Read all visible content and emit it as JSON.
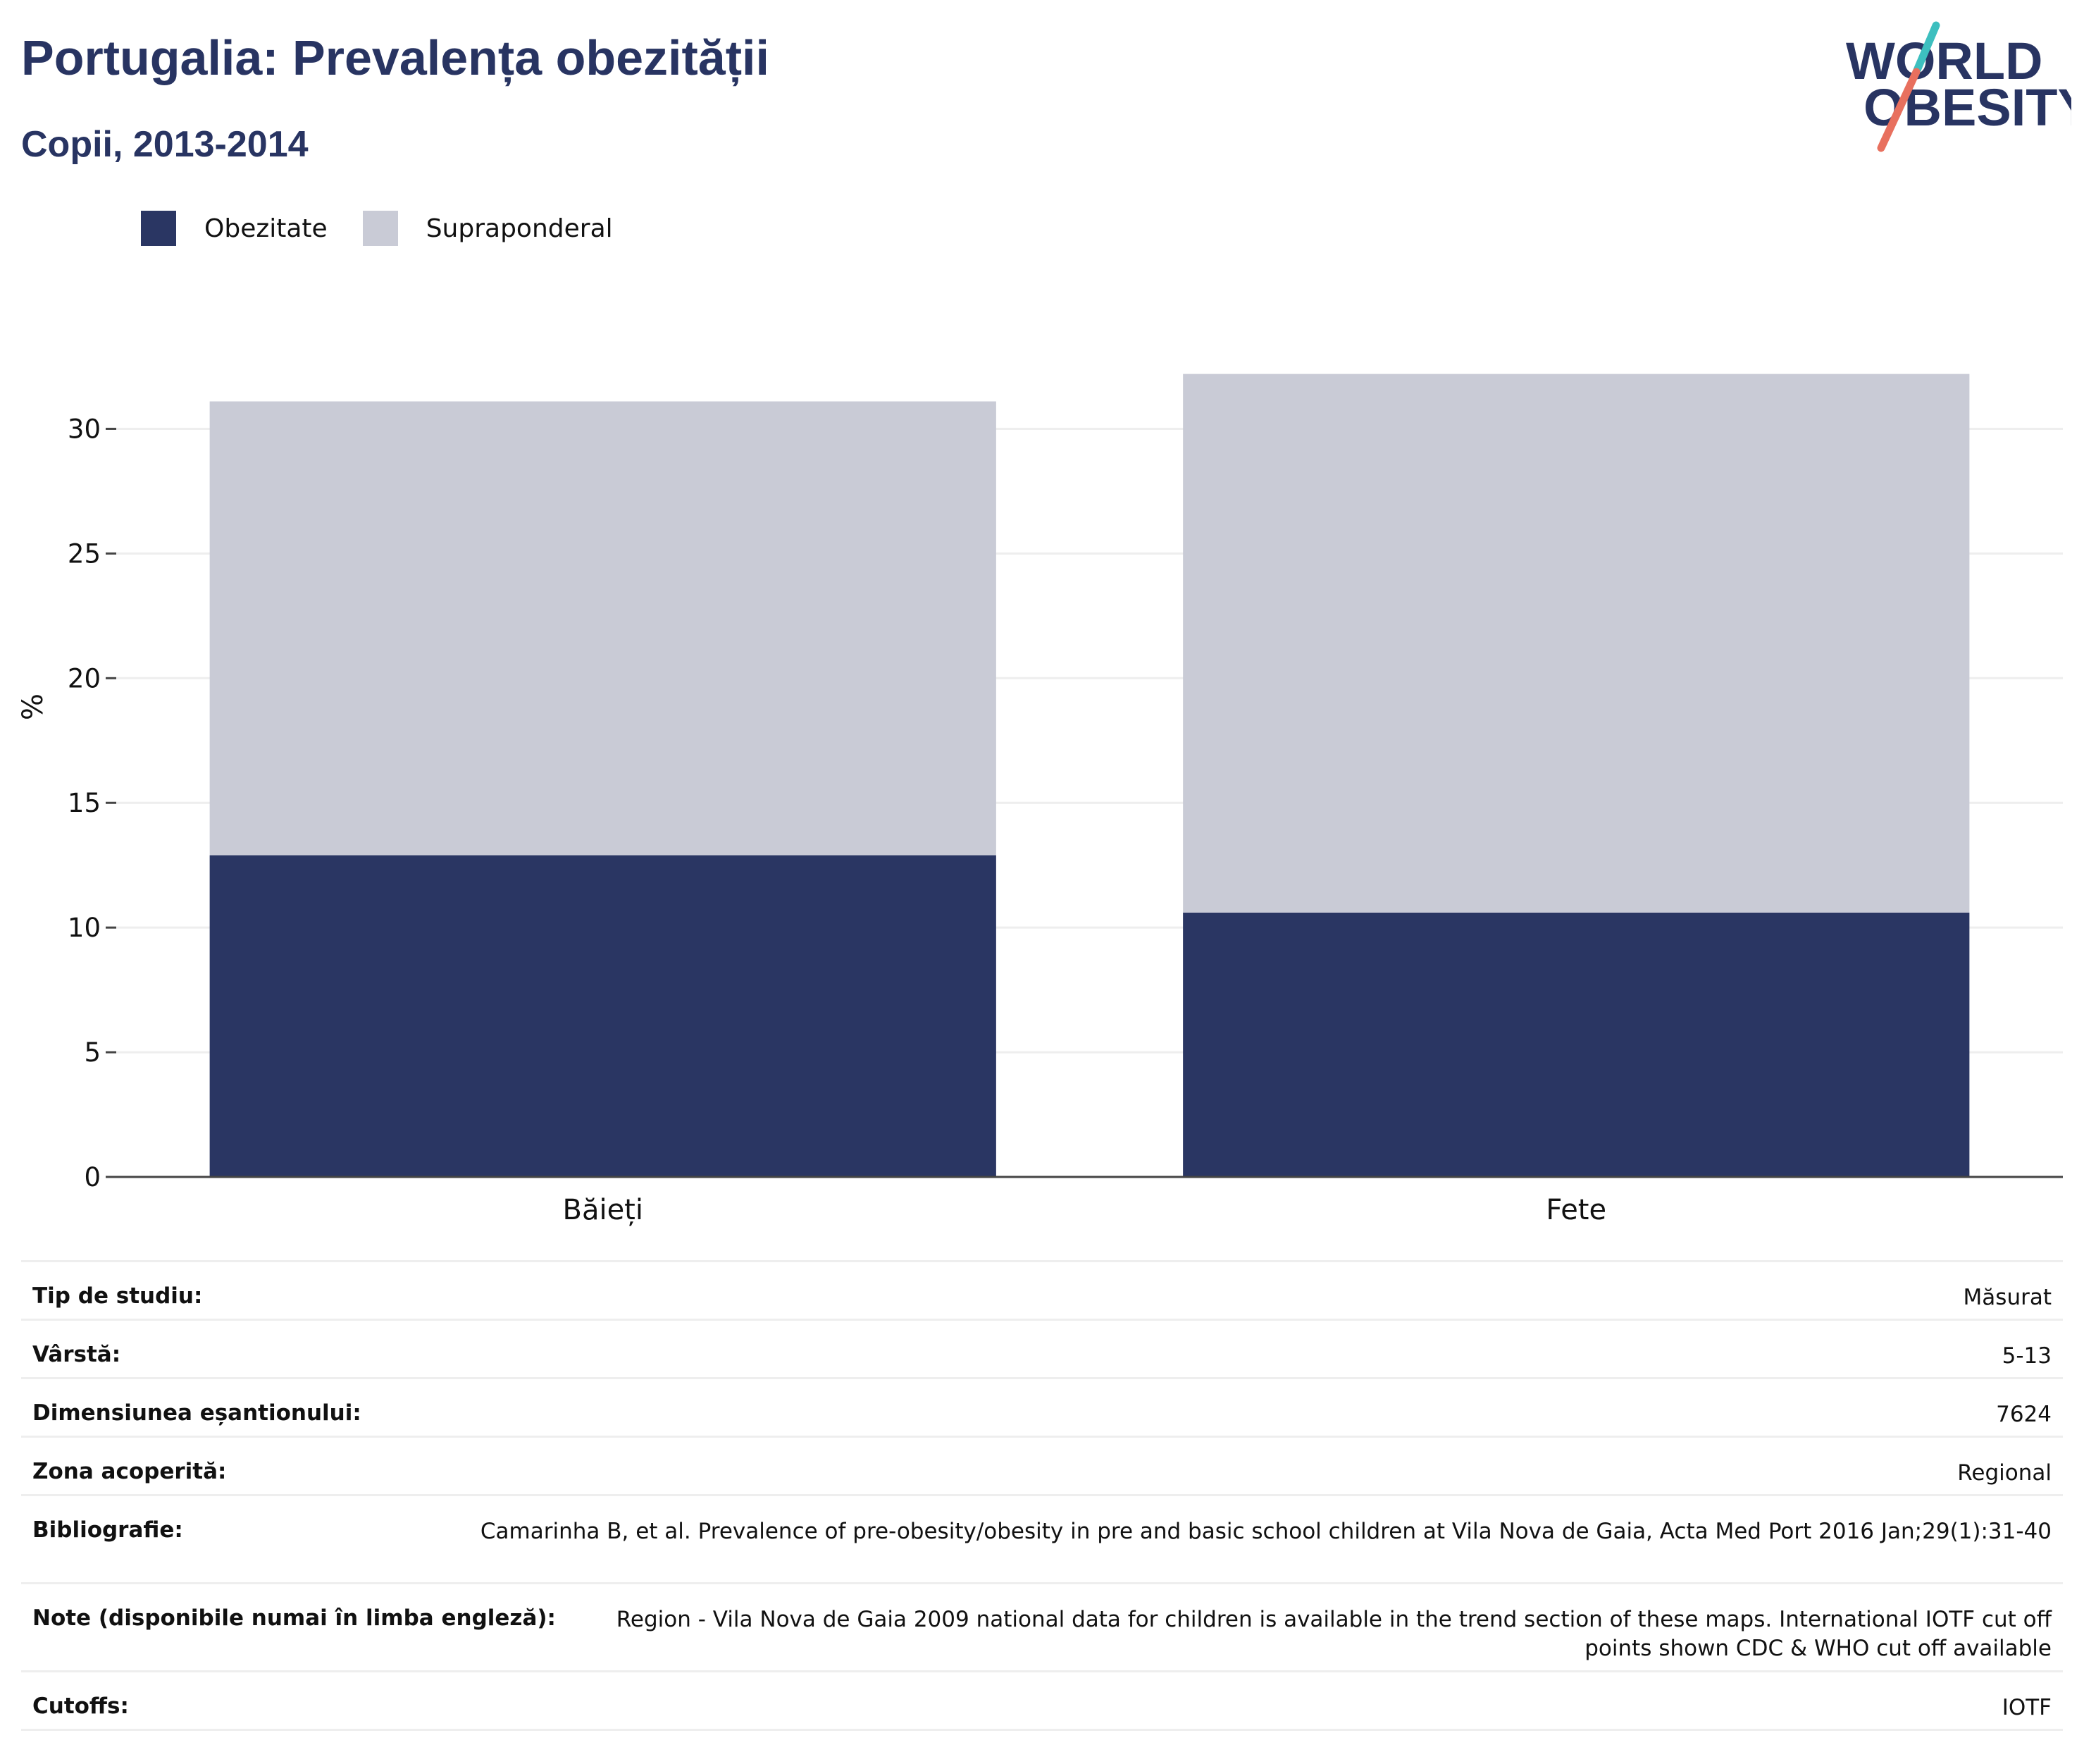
{
  "header": {
    "title": "Portugalia: Prevalența obezității",
    "subtitle": "Copii, 2013-2014"
  },
  "logo": {
    "line1": "WORLD",
    "line2": "OBESITY"
  },
  "colors": {
    "obesity": "#2a3663",
    "overweight": "#c9cbd6",
    "title": "#283462",
    "logo_teal": "#3dbfbf",
    "logo_coral": "#e8705e"
  },
  "legend": [
    {
      "label": "Obezitate",
      "color": "#2a3663"
    },
    {
      "label": "Supraponderal",
      "color": "#c9cbd6"
    }
  ],
  "chart_data": {
    "type": "bar",
    "stacked": true,
    "categories": [
      "Băieți",
      "Fete"
    ],
    "series": [
      {
        "name": "Obezitate",
        "values": [
          12.9,
          10.6
        ]
      },
      {
        "name": "Supraponderal",
        "values": [
          18.2,
          21.6
        ]
      }
    ],
    "ylabel": "%",
    "ylim": [
      0,
      32.5
    ],
    "yticks": [
      0,
      5,
      10,
      15,
      20,
      25,
      30
    ],
    "grid": true,
    "legend_position": "top-left"
  },
  "info": [
    {
      "label": "Tip de studiu:",
      "value": "Măsurat"
    },
    {
      "label": "Vârstă:",
      "value": "5-13"
    },
    {
      "label": "Dimensiunea eșantionului:",
      "value": "7624"
    },
    {
      "label": "Zona acoperită:",
      "value": "Regional"
    },
    {
      "label": "Bibliografie:",
      "value": "Camarinha B, et al. Prevalence of pre-obesity/obesity in pre and basic school children at Vila Nova de Gaia, Acta Med Port 2016 Jan;29(1):31-40"
    },
    {
      "label": "Note (disponibile numai în limba engleză):",
      "value": "Region - Vila Nova de Gaia 2009 national data for children is available in the trend section of these maps. International IOTF cut off points shown CDC & WHO cut off available"
    },
    {
      "label": "Cutoffs:",
      "value": "IOTF"
    }
  ]
}
